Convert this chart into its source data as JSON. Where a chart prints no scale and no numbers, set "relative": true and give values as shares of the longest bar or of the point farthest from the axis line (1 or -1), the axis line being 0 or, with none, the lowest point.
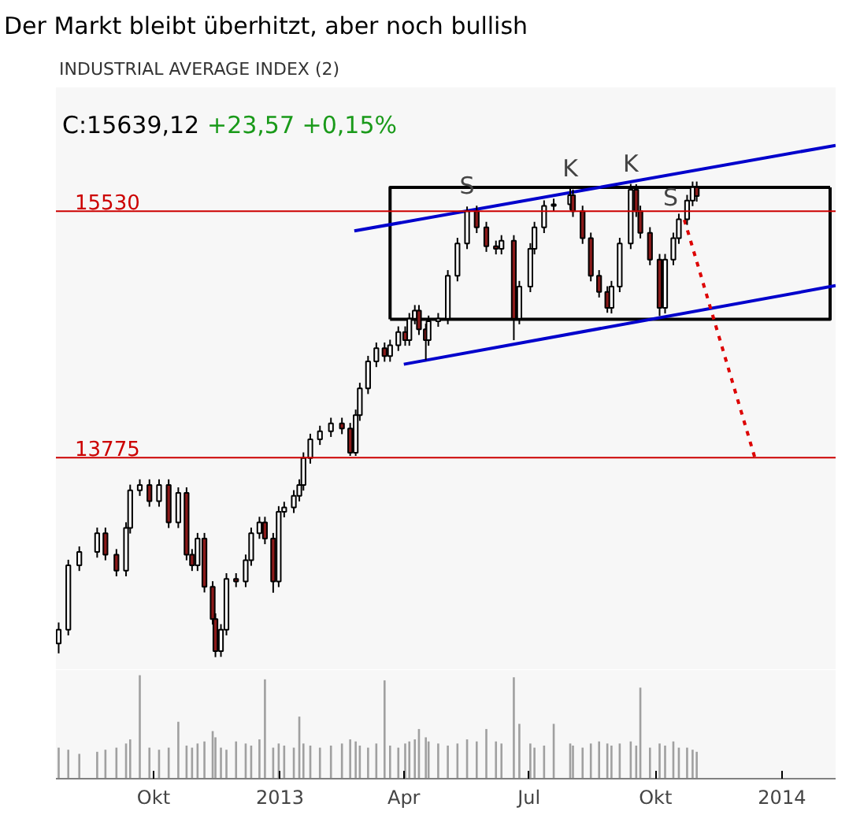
{
  "chart_data": [
    {
      "type": "candlestick",
      "title": "Der Markt bleibt überhitzt, aber noch bullish",
      "subtitle": "INDUSTRIAL AVERAGE INDEX (2)",
      "xlim": [
        "2012-07-22",
        "2014-02-09"
      ],
      "ylim": [
        12261,
        16413
      ],
      "tick_labels": false,
      "colors": [
        "#ffffff",
        "#ffffff",
        "#ffffff",
        "#ffffff",
        "#8b1a1a",
        "#8b1a1a",
        "#ffffff",
        "#ffffff",
        "#ffffff",
        "#8b1a1a",
        "#ffffff",
        "#8b1a1a",
        "#ffffff",
        "#8b1a1a",
        "#8b1a1a",
        "#ffffff",
        "#8b1a1a",
        "#8b1a1a",
        "#8b1a1a",
        "#ffffff",
        "#ffffff",
        "#8b1a1a",
        "#ffffff",
        "#ffffff",
        "#ffffff",
        "#8b1a1a",
        "#8b1a1a",
        "#ffffff",
        "#ffffff",
        "#ffffff",
        "#ffffff",
        "#ffffff",
        "#ffffff",
        "#ffffff",
        "#ffffff",
        "#8b1a1a",
        "#8b1a1a",
        "#ffffff",
        "#ffffff",
        "#ffffff",
        "#ffffff",
        "#8b1a1a",
        "#ffffff",
        "#ffffff",
        "#8b1a1a",
        "#ffffff",
        "#ffffff",
        "#8b1a1a",
        "#8b1a1a",
        "#ffffff",
        "#ffffff",
        "#ffffff",
        "#ffffff",
        "#ffffff",
        "#8b1a1a",
        "#8b1a1a",
        "#8b1a1a",
        "#ffffff",
        "#8b1a1a",
        "#ffffff",
        "#ffffff",
        "#ffffff",
        "#ffffff",
        "#ffffff",
        "#ffffff",
        "#8b1a1a",
        "#8b1a1a",
        "#8b1a1a",
        "#8b1a1a",
        "#8b1a1a",
        "#ffffff",
        "#ffffff",
        "#ffffff",
        "#8b1a1a",
        "#8b1a1a",
        "#8b1a1a",
        "#8b1a1a",
        "#ffffff",
        "#ffffff",
        "#ffffff",
        "#ffffff",
        "#ffffff",
        "#8b1a1a"
      ],
      "x": [
        "2012-07-24",
        "2012-07-31",
        "2012-08-08",
        "2012-08-21",
        "2012-08-27",
        "2012-09-04",
        "2012-09-11",
        "2012-09-14",
        "2012-09-21",
        "2012-09-28",
        "2012-10-05",
        "2012-10-12",
        "2012-10-19",
        "2012-10-25",
        "2012-10-29",
        "2012-11-02",
        "2012-11-07",
        "2012-11-13",
        "2012-11-15",
        "2012-11-19",
        "2012-11-23",
        "2012-11-30",
        "2012-12-07",
        "2012-12-11",
        "2012-12-17",
        "2012-12-21",
        "2012-12-27",
        "2012-12-31",
        "2013-01-04",
        "2013-01-11",
        "2013-01-15",
        "2013-01-18",
        "2013-01-23",
        "2013-01-30",
        "2013-02-07",
        "2013-02-15",
        "2013-02-21",
        "2013-02-25",
        "2013-02-28",
        "2013-03-06",
        "2013-03-12",
        "2013-03-18",
        "2013-03-22",
        "2013-03-28",
        "2013-04-02",
        "2013-04-05",
        "2013-04-09",
        "2013-04-12",
        "2013-04-17",
        "2013-04-19",
        "2013-04-26",
        "2013-05-03",
        "2013-05-10",
        "2013-05-17",
        "2013-05-24",
        "2013-05-31",
        "2013-06-07",
        "2013-06-11",
        "2013-06-20",
        "2013-06-24",
        "2013-07-02",
        "2013-07-05",
        "2013-07-12",
        "2013-07-19",
        "2013-07-31",
        "2013-08-02",
        "2013-08-09",
        "2013-08-15",
        "2013-08-21",
        "2013-08-27",
        "2013-08-30",
        "2013-09-05",
        "2013-09-13",
        "2013-09-17",
        "2013-09-20",
        "2013-09-27",
        "2013-10-04",
        "2013-10-08",
        "2013-10-14",
        "2013-10-18",
        "2013-10-24",
        "2013-10-28",
        "2013-10-31"
      ],
      "ohlc": [
        [
          12450,
          12600,
          12380,
          12548
        ],
        [
          12548,
          13047,
          12508,
          13007
        ],
        [
          13007,
          13142,
          12967,
          13102
        ],
        [
          13102,
          13276,
          13062,
          13236
        ],
        [
          13236,
          13276,
          13043,
          13083
        ],
        [
          13083,
          13123,
          12929,
          12969
        ],
        [
          12969,
          13314,
          12929,
          13274
        ],
        [
          13274,
          13582,
          13234,
          13542
        ],
        [
          13542,
          13620,
          13502,
          13580
        ],
        [
          13580,
          13620,
          13425,
          13465
        ],
        [
          13465,
          13620,
          13425,
          13580
        ],
        [
          13580,
          13620,
          13273,
          13313
        ],
        [
          13313,
          13563,
          13273,
          13523
        ],
        [
          13523,
          13563,
          13043,
          13083
        ],
        [
          13083,
          13123,
          12967,
          13007
        ],
        [
          13007,
          13238,
          12967,
          13198
        ],
        [
          13198,
          13238,
          12814,
          12854
        ],
        [
          12854,
          12894,
          12585,
          12625
        ],
        [
          12625,
          12665,
          12353,
          12395
        ],
        [
          12395,
          12588,
          12355,
          12548
        ],
        [
          12548,
          12951,
          12508,
          12911
        ],
        [
          12911,
          12951,
          12852,
          12892
        ],
        [
          12892,
          13084,
          12852,
          13044
        ],
        [
          13044,
          13276,
          13004,
          13236
        ],
        [
          13236,
          13353,
          13196,
          13313
        ],
        [
          13313,
          13353,
          13158,
          13198
        ],
        [
          13198,
          13238,
          12812,
          12892
        ],
        [
          12892,
          13429,
          12852,
          13389
        ],
        [
          13389,
          13460,
          13349,
          13420
        ],
        [
          13420,
          13543,
          13380,
          13503
        ],
        [
          13503,
          13620,
          13463,
          13580
        ],
        [
          13580,
          13812,
          13540,
          13772
        ],
        [
          13772,
          13945,
          13732,
          13905
        ],
        [
          13905,
          14002,
          13865,
          13962
        ],
        [
          13962,
          14059,
          13922,
          14019
        ],
        [
          14019,
          14059,
          13942,
          13982
        ],
        [
          13982,
          14022,
          13787,
          13810
        ],
        [
          13810,
          14117,
          13787,
          14077
        ],
        [
          14077,
          14308,
          14037,
          14268
        ],
        [
          14268,
          14500,
          14228,
          14460
        ],
        [
          14460,
          14595,
          14420,
          14555
        ],
        [
          14555,
          14595,
          14458,
          14498
        ],
        [
          14498,
          14615,
          14458,
          14575
        ],
        [
          14575,
          14710,
          14535,
          14670
        ],
        [
          14670,
          14710,
          14572,
          14612
        ],
        [
          14612,
          14805,
          14572,
          14765
        ],
        [
          14765,
          14862,
          14725,
          14822
        ],
        [
          14822,
          14862,
          14649,
          14689
        ],
        [
          14689,
          14729,
          14470,
          14612
        ],
        [
          14612,
          14787,
          14572,
          14747
        ],
        [
          14747,
          14805,
          14707,
          14765
        ],
        [
          14765,
          15111,
          14725,
          15071
        ],
        [
          15071,
          15341,
          15031,
          15301
        ],
        [
          15301,
          15564,
          15261,
          15530
        ],
        [
          15530,
          15570,
          15375,
          15415
        ],
        [
          15415,
          15455,
          15241,
          15281
        ],
        [
          15281,
          15321,
          15223,
          15263
        ],
        [
          15263,
          15360,
          15223,
          15320
        ],
        [
          15320,
          15360,
          14612,
          14765
        ],
        [
          14765,
          15034,
          14725,
          14994
        ],
        [
          14994,
          15303,
          14954,
          15263
        ],
        [
          15263,
          15455,
          15223,
          15415
        ],
        [
          15415,
          15608,
          15375,
          15568
        ],
        [
          15568,
          15620,
          15528,
          15580
        ],
        [
          15580,
          15691,
          15540,
          15645
        ],
        [
          15645,
          15685,
          15490,
          15530
        ],
        [
          15530,
          15570,
          15298,
          15338
        ],
        [
          15338,
          15378,
          15031,
          15071
        ],
        [
          15071,
          15111,
          14916,
          14956
        ],
        [
          14956,
          14996,
          14807,
          14842
        ],
        [
          14842,
          15034,
          14802,
          14994
        ],
        [
          14994,
          15341,
          14954,
          15301
        ],
        [
          15301,
          15725,
          15261,
          15683
        ],
        [
          15683,
          15723,
          15490,
          15530
        ],
        [
          15530,
          15570,
          15337,
          15377
        ],
        [
          15377,
          15417,
          15146,
          15186
        ],
        [
          15186,
          15226,
          14784,
          14842
        ],
        [
          14842,
          15226,
          14802,
          15186
        ],
        [
          15186,
          15378,
          15146,
          15338
        ],
        [
          15338,
          15513,
          15298,
          15473
        ],
        [
          15473,
          15647,
          15433,
          15607
        ],
        [
          15607,
          15742,
          15567,
          15702
        ],
        [
          15702,
          15742,
          15599,
          15639
        ]
      ],
      "series": [
        {
          "type": "line",
          "color": "#000000",
          "x": [
            "2013-03-22",
            "2014-02-05",
            "2014-02-05"
          ],
          "values": [
            14760,
            14760,
            15700
          ]
        },
        {
          "type": "line",
          "color": "#000000",
          "x": [
            "2013-03-22",
            "2013-03-22",
            "2014-02-05"
          ],
          "values": [
            14760,
            15700,
            15700
          ]
        },
        {
          "type": "line",
          "color": "#0000cc",
          "x": [
            "2013-02-24",
            "2014-02-09"
          ],
          "values": [
            15390,
            16000
          ]
        },
        {
          "type": "line",
          "color": "#0000cc",
          "x": [
            "2013-04-01",
            "2014-02-09"
          ],
          "values": [
            14440,
            15000
          ]
        },
        {
          "type": "line",
          "color": "#dd0000",
          "line_style": "dotted",
          "x": [
            "2013-10-22",
            "2013-12-13"
          ],
          "values": [
            15470,
            13750
          ]
        }
      ],
      "ref_lines": [
        {
          "axis": "y",
          "value": 15530,
          "label": "15530",
          "color": "#cc0000"
        },
        {
          "axis": "y",
          "value": 13775,
          "label": "13775",
          "color": "#cc0000"
        }
      ],
      "annotations": [
        "C:15639,12 +23,57 +0,15%",
        {
          "text": "S",
          "x": "2013-05-17",
          "y": 15564
        },
        {
          "text": "K",
          "x": "2013-07-31",
          "y": 15691
        },
        {
          "text": "K",
          "x": "2013-09-13",
          "y": 15725
        },
        {
          "text": "S",
          "x": "2013-10-12",
          "y": 15480
        }
      ]
    },
    {
      "type": "bar",
      "relative": true,
      "color": "#a0a0a0",
      "tick_labels": "x",
      "xlim": [
        "2012-07-22",
        "2014-02-09"
      ],
      "xticks": [
        {
          "value": "2012-10-01",
          "label": "Okt"
        },
        {
          "value": "2013-01-01",
          "label": "2013"
        },
        {
          "value": "2013-04-01",
          "label": "Apr"
        },
        {
          "value": "2013-07-01",
          "label": "Jul"
        },
        {
          "value": "2013-10-01",
          "label": "Okt"
        },
        {
          "value": "2014-01-01",
          "label": "2014"
        }
      ],
      "x": [
        "2012-07-24",
        "2012-07-31",
        "2012-08-08",
        "2012-08-21",
        "2012-08-27",
        "2012-09-04",
        "2012-09-11",
        "2012-09-14",
        "2012-09-21",
        "2012-09-28",
        "2012-10-05",
        "2012-10-12",
        "2012-10-19",
        "2012-10-25",
        "2012-10-29",
        "2012-11-02",
        "2012-11-07",
        "2012-11-13",
        "2012-11-15",
        "2012-11-19",
        "2012-11-23",
        "2012-11-30",
        "2012-12-07",
        "2012-12-11",
        "2012-12-17",
        "2012-12-21",
        "2012-12-27",
        "2012-12-31",
        "2013-01-04",
        "2013-01-11",
        "2013-01-15",
        "2013-01-18",
        "2013-01-23",
        "2013-01-30",
        "2013-02-07",
        "2013-02-15",
        "2013-02-21",
        "2013-02-25",
        "2013-02-28",
        "2013-03-06",
        "2013-03-12",
        "2013-03-18",
        "2013-03-22",
        "2013-03-28",
        "2013-04-02",
        "2013-04-05",
        "2013-04-09",
        "2013-04-12",
        "2013-04-17",
        "2013-04-19",
        "2013-04-26",
        "2013-05-03",
        "2013-05-10",
        "2013-05-17",
        "2013-05-24",
        "2013-05-31",
        "2013-06-07",
        "2013-06-11",
        "2013-06-20",
        "2013-06-24",
        "2013-07-02",
        "2013-07-05",
        "2013-07-12",
        "2013-07-19",
        "2013-07-31",
        "2013-08-02",
        "2013-08-09",
        "2013-08-15",
        "2013-08-21",
        "2013-08-27",
        "2013-08-30",
        "2013-09-05",
        "2013-09-13",
        "2013-09-17",
        "2013-09-20",
        "2013-09-27",
        "2013-10-04",
        "2013-10-08",
        "2013-10-14",
        "2013-10-18",
        "2013-10-24",
        "2013-10-28",
        "2013-10-31"
      ],
      "values": [
        0.3,
        0.28,
        0.24,
        0.26,
        0.28,
        0.3,
        0.34,
        0.38,
        1.0,
        0.3,
        0.28,
        0.3,
        0.55,
        0.32,
        0.3,
        0.34,
        0.36,
        0.46,
        0.4,
        0.3,
        0.28,
        0.36,
        0.34,
        0.32,
        0.38,
        0.96,
        0.3,
        0.34,
        0.32,
        0.3,
        0.6,
        0.34,
        0.32,
        0.3,
        0.32,
        0.34,
        0.38,
        0.36,
        0.32,
        0.3,
        0.34,
        0.95,
        0.32,
        0.3,
        0.34,
        0.36,
        0.38,
        0.48,
        0.4,
        0.36,
        0.34,
        0.32,
        0.34,
        0.38,
        0.36,
        0.48,
        0.36,
        0.34,
        0.98,
        0.53,
        0.34,
        0.3,
        0.32,
        0.53,
        0.34,
        0.32,
        0.3,
        0.34,
        0.36,
        0.34,
        0.32,
        0.34,
        0.36,
        0.32,
        0.88,
        0.3,
        0.34,
        0.32,
        0.36,
        0.3,
        0.3,
        0.28,
        0.26
      ]
    }
  ]
}
